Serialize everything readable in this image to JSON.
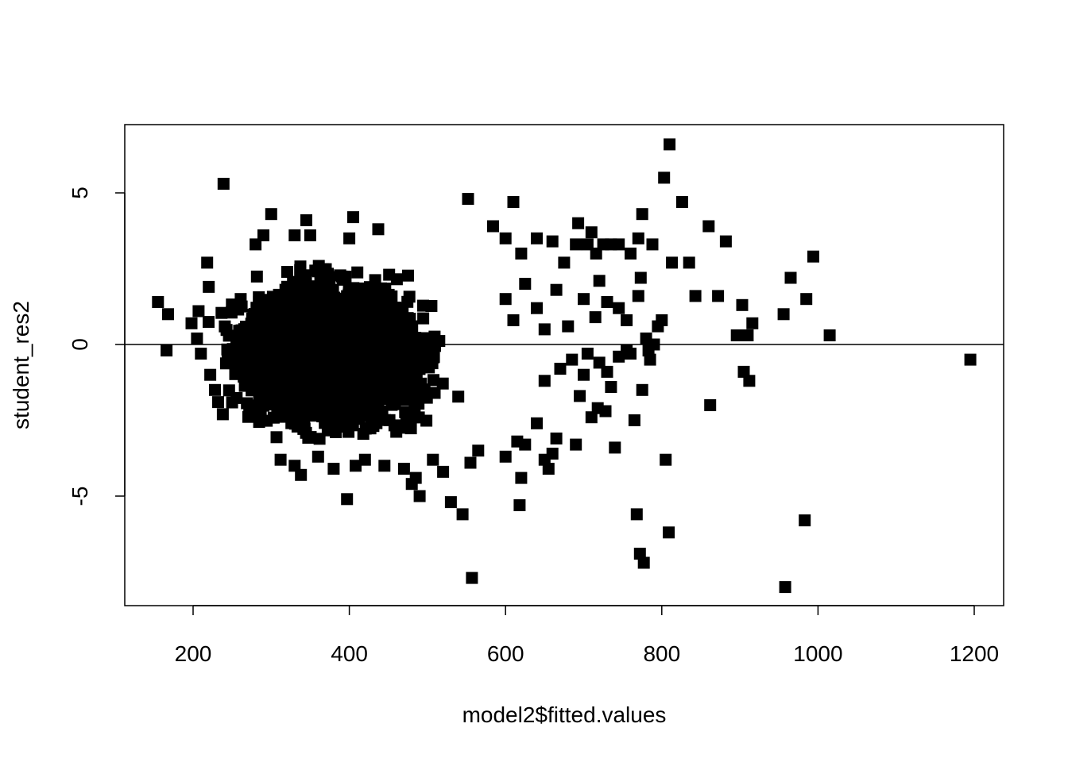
{
  "chart_data": {
    "type": "scatter",
    "title": "",
    "xlabel": "model2$fitted.values",
    "ylabel": "student_res2",
    "xlim": [
      110,
      1240
    ],
    "ylim": [
      -8.5,
      7.2
    ],
    "x_ticks": [
      200,
      400,
      600,
      800,
      1000,
      1200
    ],
    "x_tick_labels": [
      "200",
      "400",
      "600",
      "800",
      "1000",
      "1200"
    ],
    "y_ticks": [
      -5,
      0,
      5
    ],
    "y_tick_labels": [
      "-5",
      "0",
      "5"
    ],
    "reference_line_y": 0,
    "marker": "filled-square",
    "marker_color": "#000000",
    "grid": false,
    "legend": "none",
    "dense_cluster": {
      "description": "thousands of overlapping points",
      "x_center": 380,
      "x_spread": 130,
      "y_center": -0.3,
      "y_spread": 2.6
    },
    "points": [
      [
        155,
        1.4
      ],
      [
        168,
        1.0
      ],
      [
        166,
        -0.2
      ],
      [
        198,
        0.7
      ],
      [
        205,
        0.2
      ],
      [
        210,
        -0.3
      ],
      [
        207,
        1.1
      ],
      [
        220,
        1.9
      ],
      [
        218,
        2.7
      ],
      [
        222,
        -1.0
      ],
      [
        228,
        -1.5
      ],
      [
        232,
        -1.9
      ],
      [
        238,
        -2.3
      ],
      [
        239,
        5.3
      ],
      [
        300,
        4.3
      ],
      [
        345,
        4.1
      ],
      [
        350,
        3.6
      ],
      [
        405,
        4.2
      ],
      [
        437,
        3.8
      ],
      [
        400,
        3.5
      ],
      [
        330,
        3.6
      ],
      [
        290,
        3.6
      ],
      [
        280,
        3.3
      ],
      [
        312,
        -3.8
      ],
      [
        330,
        -4.0
      ],
      [
        338,
        -4.3
      ],
      [
        360,
        -3.7
      ],
      [
        380,
        -4.1
      ],
      [
        397,
        -5.1
      ],
      [
        408,
        -4.0
      ],
      [
        420,
        -3.8
      ],
      [
        445,
        -4.0
      ],
      [
        470,
        -4.1
      ],
      [
        480,
        -4.6
      ],
      [
        485,
        -4.4
      ],
      [
        490,
        -5.0
      ],
      [
        507,
        -3.8
      ],
      [
        520,
        -4.2
      ],
      [
        530,
        -5.2
      ],
      [
        545,
        -5.6
      ],
      [
        557,
        -7.7
      ],
      [
        555,
        -3.9
      ],
      [
        565,
        -3.5
      ],
      [
        552,
        4.8
      ],
      [
        584,
        3.9
      ],
      [
        600,
        3.5
      ],
      [
        610,
        4.7
      ],
      [
        620,
        3.0
      ],
      [
        640,
        3.5
      ],
      [
        660,
        3.4
      ],
      [
        675,
        2.7
      ],
      [
        690,
        3.3
      ],
      [
        693,
        4.0
      ],
      [
        705,
        3.3
      ],
      [
        710,
        3.7
      ],
      [
        716,
        3.0
      ],
      [
        725,
        3.3
      ],
      [
        735,
        3.3
      ],
      [
        745,
        3.3
      ],
      [
        760,
        3.0
      ],
      [
        770,
        3.5
      ],
      [
        775,
        4.3
      ],
      [
        773,
        2.2
      ],
      [
        788,
        3.3
      ],
      [
        803,
        5.5
      ],
      [
        810,
        6.6
      ],
      [
        813,
        2.7
      ],
      [
        826,
        4.7
      ],
      [
        835,
        2.7
      ],
      [
        843,
        1.6
      ],
      [
        860,
        3.9
      ],
      [
        872,
        1.6
      ],
      [
        882,
        3.4
      ],
      [
        896,
        0.3
      ],
      [
        903,
        1.3
      ],
      [
        910,
        0.3
      ],
      [
        916,
        0.7
      ],
      [
        956,
        1.0
      ],
      [
        965,
        2.2
      ],
      [
        985,
        1.5
      ],
      [
        994,
        2.9
      ],
      [
        1015,
        0.3
      ],
      [
        1195,
        -0.5
      ],
      [
        600,
        -3.7
      ],
      [
        615,
        -3.2
      ],
      [
        618,
        -5.3
      ],
      [
        620,
        -4.4
      ],
      [
        625,
        -3.3
      ],
      [
        640,
        -2.6
      ],
      [
        650,
        -3.8
      ],
      [
        655,
        -4.1
      ],
      [
        660,
        -3.6
      ],
      [
        665,
        -3.1
      ],
      [
        690,
        -3.3
      ],
      [
        695,
        -1.7
      ],
      [
        710,
        -2.4
      ],
      [
        718,
        -2.1
      ],
      [
        728,
        -2.2
      ],
      [
        735,
        -1.4
      ],
      [
        740,
        -3.4
      ],
      [
        760,
        -0.3
      ],
      [
        775,
        -1.5
      ],
      [
        785,
        -0.5
      ],
      [
        790,
        0.0
      ],
      [
        795,
        0.6
      ],
      [
        800,
        0.8
      ],
      [
        765,
        -2.5
      ],
      [
        768,
        -5.6
      ],
      [
        772,
        -6.9
      ],
      [
        777,
        -7.2
      ],
      [
        783,
        -0.2
      ],
      [
        805,
        -3.8
      ],
      [
        809,
        -6.2
      ],
      [
        862,
        -2.0
      ],
      [
        905,
        -0.9
      ],
      [
        912,
        -1.2
      ],
      [
        958,
        -8.0
      ],
      [
        983,
        -5.8
      ],
      [
        600,
        1.5
      ],
      [
        610,
        0.8
      ],
      [
        625,
        2.0
      ],
      [
        640,
        1.2
      ],
      [
        650,
        0.5
      ],
      [
        665,
        1.8
      ],
      [
        680,
        0.6
      ],
      [
        700,
        1.5
      ],
      [
        715,
        0.9
      ],
      [
        720,
        2.1
      ],
      [
        730,
        1.4
      ],
      [
        745,
        1.2
      ],
      [
        755,
        0.8
      ],
      [
        770,
        1.6
      ],
      [
        780,
        0.2
      ],
      [
        650,
        -1.2
      ],
      [
        670,
        -0.8
      ],
      [
        685,
        -0.5
      ],
      [
        700,
        -1.0
      ],
      [
        705,
        -0.3
      ],
      [
        720,
        -0.6
      ],
      [
        730,
        -0.9
      ],
      [
        745,
        -0.4
      ],
      [
        755,
        -0.2
      ]
    ]
  }
}
